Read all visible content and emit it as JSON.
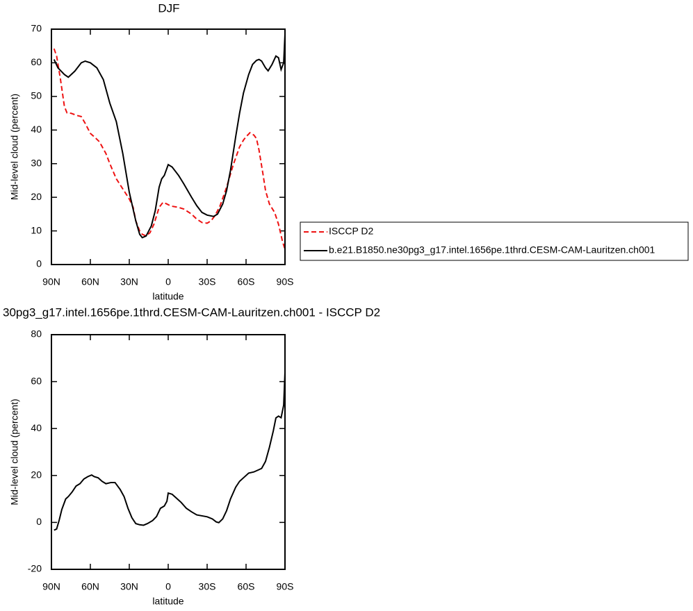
{
  "chart_data": [
    {
      "type": "line",
      "title": "DJF",
      "x_label": "latitude",
      "y_label": "Mid-level cloud (percent)",
      "xlim": [
        90,
        -90
      ],
      "xticks": [
        {
          "value": 90,
          "label": "90N"
        },
        {
          "value": 60,
          "label": "60N"
        },
        {
          "value": 30,
          "label": "30N"
        },
        0,
        {
          "value": -30,
          "label": "30S"
        },
        {
          "value": -60,
          "label": "60S"
        },
        {
          "value": -90,
          "label": "90S"
        }
      ],
      "ylim": [
        0,
        70
      ],
      "yticks": [
        0,
        10,
        20,
        30,
        40,
        50,
        60,
        70
      ],
      "legend": "right",
      "series": [
        {
          "name": "ISCCP D2",
          "color": "#ee1111",
          "dash": true,
          "x": [
            88,
            86,
            83,
            80,
            78,
            75,
            70,
            67,
            64,
            60,
            57,
            53,
            48,
            45,
            40,
            35,
            30,
            27,
            25,
            22,
            20,
            17,
            14,
            11,
            7,
            4,
            1,
            -2,
            -8,
            -12,
            -18,
            -22,
            -26,
            -30,
            -33,
            -36,
            -40,
            -45,
            -50,
            -55,
            -58,
            -60,
            -63,
            -66,
            -68,
            -70,
            -73,
            -75,
            -78,
            -82,
            -85,
            -88,
            -90
          ],
          "values": [
            64.2,
            62,
            55,
            47,
            45.1,
            45,
            44.3,
            44,
            42,
            39,
            38,
            36.5,
            33,
            30,
            25.5,
            22.5,
            19.5,
            17,
            13,
            10,
            9,
            8.5,
            9.5,
            12,
            17,
            18.5,
            18,
            17.4,
            17,
            16.5,
            15,
            13.5,
            12.5,
            12.3,
            13,
            14.5,
            17.5,
            23,
            29.5,
            35,
            37,
            38,
            39.2,
            38.5,
            37.5,
            34,
            27,
            22,
            18,
            15.5,
            12,
            7,
            4.5
          ]
        },
        {
          "name": "b.e21.B1850.ne30pg3_g17.intel.1656pe.1thrd.CESM-CAM-Lauritzen.ch001",
          "color": "#000000",
          "dash": false,
          "x": [
            88,
            85,
            80,
            77,
            72,
            67,
            64,
            60,
            55,
            50,
            45,
            40,
            35,
            30,
            25,
            22,
            20,
            17,
            13,
            10,
            7,
            5,
            3,
            0,
            -3,
            -8,
            -12,
            -18,
            -22,
            -26,
            -30,
            -35,
            -38,
            -42,
            -45,
            -48,
            -52,
            -55,
            -58,
            -62,
            -65,
            -68,
            -70,
            -72,
            -75,
            -77,
            -80,
            -83,
            -85,
            -87,
            -89,
            -90
          ],
          "values": [
            61,
            58.5,
            56.5,
            55.7,
            57.5,
            60,
            60.5,
            60,
            58.5,
            55,
            48,
            42.5,
            33,
            21.5,
            13,
            9,
            8,
            8.5,
            11.5,
            16,
            23,
            25.5,
            26.5,
            29.7,
            29,
            26.5,
            24,
            20,
            17.5,
            15.5,
            14.7,
            14.3,
            15,
            18,
            22,
            28,
            38,
            45,
            51,
            56.5,
            59.5,
            60.7,
            61,
            60.5,
            58.5,
            57.6,
            59.5,
            62,
            61.5,
            58,
            60,
            68.5
          ]
        }
      ]
    },
    {
      "type": "line",
      "title": "30pg3_g17.intel.1656pe.1thrd.CESM-CAM-Lauritzen.ch001 - ISCCP D2",
      "x_label": "latitude",
      "y_label": "Mid-level cloud (percent)",
      "xlim": [
        90,
        -90
      ],
      "xticks": [
        {
          "value": 90,
          "label": "90N"
        },
        {
          "value": 60,
          "label": "60N"
        },
        {
          "value": 30,
          "label": "30N"
        },
        0,
        {
          "value": -30,
          "label": "30S"
        },
        {
          "value": -60,
          "label": "60S"
        },
        {
          "value": -90,
          "label": "90S"
        }
      ],
      "ylim": [
        -20,
        80
      ],
      "yticks": [
        -20,
        0,
        20,
        40,
        60,
        80
      ],
      "series": [
        {
          "color": "#000000",
          "dash": false,
          "x": [
            88,
            86,
            84,
            82,
            79,
            77,
            74,
            71,
            68,
            65,
            62,
            59,
            57,
            54,
            51,
            48,
            44,
            41,
            37,
            34,
            31,
            28,
            25,
            22,
            19,
            16,
            12,
            9,
            6,
            3,
            1,
            0,
            -3,
            -6,
            -10,
            -14,
            -18,
            -22,
            -26,
            -30,
            -34,
            -37,
            -39,
            -42,
            -45,
            -48,
            -52,
            -55,
            -58,
            -62,
            -66,
            -70,
            -72,
            -75,
            -78,
            -81,
            -83,
            -85,
            -87,
            -89,
            -90
          ],
          "values": [
            -3.3,
            -2.8,
            1,
            5.5,
            10,
            11,
            13,
            15.5,
            16.5,
            18.5,
            19.5,
            20.2,
            19.5,
            19,
            17.5,
            16.5,
            17,
            17,
            14,
            11,
            6,
            2,
            -0.5,
            -1,
            -1.2,
            -0.5,
            0.8,
            2.5,
            6,
            7,
            9,
            12.5,
            12,
            10.5,
            8.5,
            6,
            4.5,
            3.2,
            2.8,
            2.4,
            1.5,
            0.2,
            -0.1,
            1.5,
            5,
            10,
            15,
            17.5,
            19,
            21,
            21.5,
            22.5,
            23,
            26,
            32,
            39,
            44.5,
            45.3,
            44.6,
            50,
            64
          ]
        }
      ]
    }
  ]
}
